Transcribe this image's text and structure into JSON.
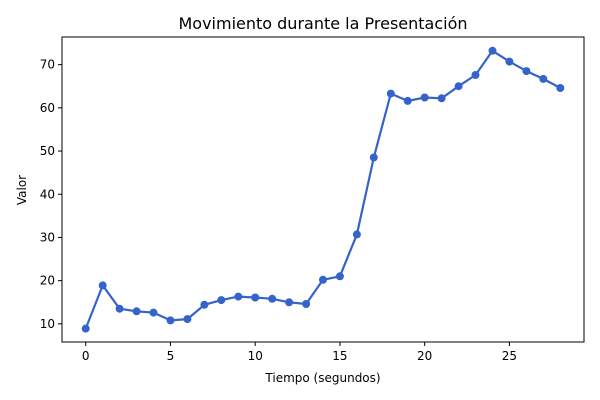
{
  "chart_data": {
    "type": "line",
    "title": "Movimiento durante la Presentación",
    "xlabel": "Tiempo (segundos)",
    "ylabel": "Valor",
    "xlim": [
      -1.4,
      29.4
    ],
    "ylim": [
      5.8,
      76.4
    ],
    "xticks": [
      0,
      5,
      10,
      15,
      20,
      25
    ],
    "yticks": [
      10,
      20,
      30,
      40,
      50,
      60,
      70
    ],
    "grid": false,
    "series": [
      {
        "color": "#3563c9",
        "x": [
          0,
          1,
          2,
          3,
          4,
          5,
          6,
          7,
          8,
          9,
          10,
          11,
          12,
          13,
          14,
          15,
          16,
          17,
          18,
          19,
          20,
          21,
          22,
          23,
          24,
          25,
          26,
          27,
          28
        ],
        "y": [
          8.9,
          18.9,
          13.5,
          12.9,
          12.6,
          10.8,
          11.1,
          14.4,
          15.5,
          16.3,
          16.1,
          15.8,
          15.0,
          14.6,
          20.2,
          21.0,
          30.7,
          48.5,
          63.3,
          61.6,
          62.4,
          62.2,
          65.0,
          67.6,
          73.2,
          70.7,
          68.5,
          66.7,
          64.6
        ]
      }
    ]
  }
}
